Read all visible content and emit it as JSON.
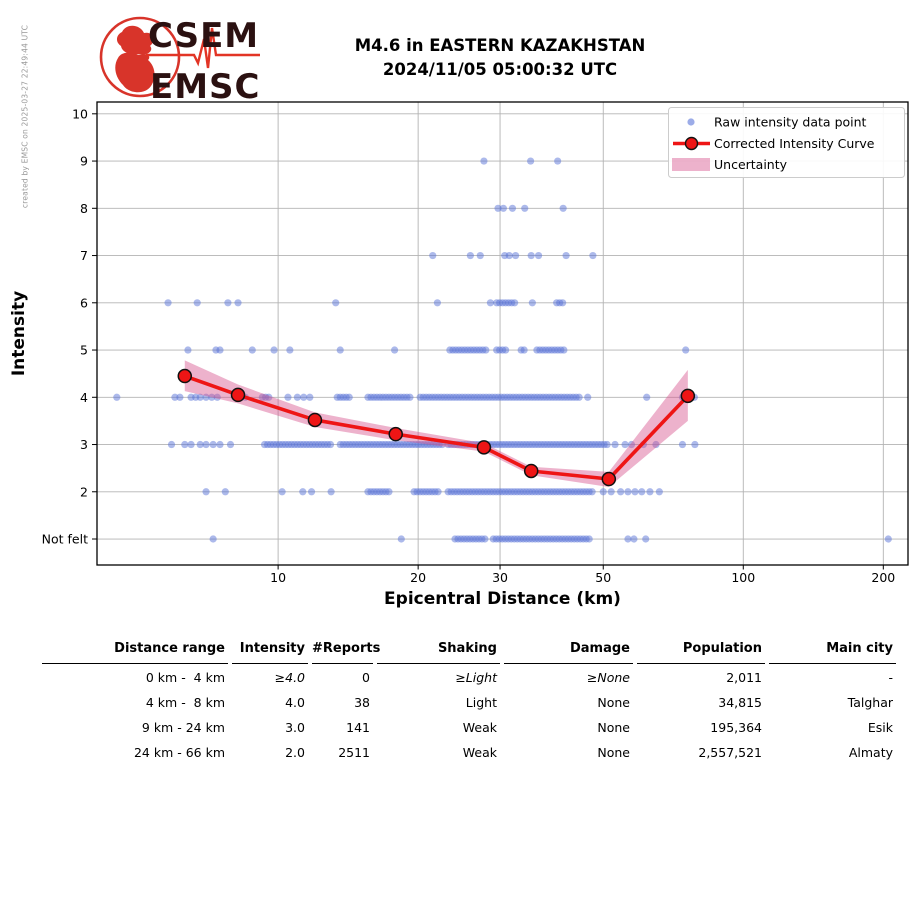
{
  "credit": "created by EMSC on 2025-03-27 22:49:44 UTC",
  "logo": {
    "line1": "CSEM",
    "line2": "EMSC"
  },
  "title": {
    "line1": "M4.6 in EASTERN KAZAKHSTAN",
    "line2": "2024/11/05 05:00:32 UTC"
  },
  "chart_data": {
    "type": "scatter",
    "title": "",
    "xlabel": "Epicentral Distance (km)",
    "ylabel": "Intensity",
    "x_scale": "log",
    "xlim": [
      4.08,
      226
    ],
    "ylim": [
      0.45,
      10.25
    ],
    "x_ticks": [
      10,
      20,
      30,
      50,
      100,
      200
    ],
    "y_ticks": [
      {
        "v": 10,
        "label": "10"
      },
      {
        "v": 9,
        "label": "9"
      },
      {
        "v": 8,
        "label": "8"
      },
      {
        "v": 7,
        "label": "7"
      },
      {
        "v": 6,
        "label": "6"
      },
      {
        "v": 5,
        "label": "5"
      },
      {
        "v": 4,
        "label": "4"
      },
      {
        "v": 3,
        "label": "3"
      },
      {
        "v": 2,
        "label": "2"
      },
      {
        "v": 1,
        "label": "Not felt"
      }
    ],
    "grid": true,
    "legend_position": "upper right",
    "legend": [
      {
        "type": "point",
        "label": "Raw intensity data point"
      },
      {
        "type": "line",
        "label": "Corrected Intensity Curve"
      },
      {
        "type": "patch",
        "label": "Uncertainty"
      }
    ],
    "colors": {
      "raw_point": "#5a74d8",
      "curve": "#ee1515",
      "marker_edge": "#111111",
      "band": "#d6548e",
      "grid": "#b3b3b3",
      "logo_red": "#d8342a",
      "logo_text": "#2b1111",
      "credit_gray": "#999999"
    },
    "raw_series": [
      {
        "intensity": 9,
        "points": [
          27.7,
          34.9,
          39.9
        ],
        "dense": []
      },
      {
        "intensity": 8,
        "points": [
          29.7,
          30.5,
          31.9,
          33.9,
          41.0
        ],
        "dense": []
      },
      {
        "intensity": 7,
        "points": [
          21.5,
          25.9,
          27.2,
          30.7,
          31.4,
          32.4,
          35.0,
          36.3,
          41.6,
          47.5
        ],
        "dense": []
      },
      {
        "intensity": 6,
        "points": [
          5.8,
          6.7,
          7.8,
          8.2,
          13.3,
          22.0,
          28.6,
          35.2
        ],
        "dense": [
          [
            29.5,
            32.7
          ],
          [
            39.7,
            41.2
          ]
        ]
      },
      {
        "intensity": 5,
        "points": [
          6.4,
          7.35,
          7.5,
          8.8,
          9.8,
          10.6,
          13.6,
          17.8,
          75.2
        ],
        "dense": [
          [
            23.4,
            28.3
          ],
          [
            29.5,
            31.3
          ],
          [
            33.3,
            34.2
          ],
          [
            36.0,
            41.7
          ]
        ]
      },
      {
        "intensity": 4,
        "points": [
          4.5,
          6.0,
          6.15,
          6.5,
          6.65,
          6.8,
          7.0,
          7.2,
          7.4,
          8.1,
          8.5,
          9.25,
          9.4,
          9.55,
          10.5,
          11.0,
          11.35,
          11.7,
          46.3,
          62.0,
          74.0,
          78.5
        ],
        "dense": [
          [
            13.4,
            14.4
          ],
          [
            15.6,
            19.4
          ],
          [
            20.2,
            44.4
          ]
        ]
      },
      {
        "intensity": 3,
        "points": [
          5.9,
          6.3,
          6.5,
          6.8,
          7.0,
          7.25,
          7.5,
          7.9,
          53.0,
          55.7,
          57.5,
          61.0,
          64.9,
          74.0,
          78.7
        ],
        "dense": [
          [
            9.35,
            13.0
          ],
          [
            13.6,
            22.6
          ],
          [
            23.2,
            51.5
          ]
        ]
      },
      {
        "intensity": 2,
        "points": [
          7.0,
          7.7,
          10.2,
          11.3,
          11.8,
          13.0,
          50.0,
          52.0,
          54.5,
          56.5,
          58.5,
          60.5,
          63.0,
          66.0
        ],
        "dense": [
          [
            15.6,
            17.5
          ],
          [
            19.6,
            22.3
          ],
          [
            23.2,
            48.0
          ]
        ]
      },
      {
        "intensity": 1,
        "points": [
          7.25,
          18.4,
          56.5,
          58.2,
          61.7,
          205.0
        ],
        "dense": [
          [
            24.0,
            28.1
          ],
          [
            29.0,
            47.0
          ]
        ]
      }
    ],
    "corrected_curve": {
      "x": [
        6.3,
        8.2,
        12.0,
        17.9,
        27.7,
        35.0,
        51.4,
        76.0
      ],
      "y": [
        4.45,
        4.05,
        3.52,
        3.22,
        2.94,
        2.44,
        2.27,
        4.03
      ],
      "upper": [
        4.78,
        4.27,
        3.68,
        3.35,
        3.03,
        2.53,
        2.42,
        4.58
      ],
      "lower": [
        4.13,
        3.87,
        3.37,
        3.09,
        2.85,
        2.35,
        2.1,
        3.5
      ]
    }
  },
  "table": {
    "headers": [
      "Distance range",
      "Intensity",
      "#Reports",
      "Shaking",
      "Damage",
      "Population",
      "Main city"
    ],
    "rows": [
      [
        " 0 km -  4 km",
        "≥4.0",
        "0",
        "≥Light",
        "≥None",
        "2,011",
        "-"
      ],
      [
        " 4 km -  8 km",
        "4.0",
        "38",
        "Light",
        "None",
        "34,815",
        "Talghar"
      ],
      [
        " 9 km - 24 km",
        "3.0",
        "141",
        "Weak",
        "None",
        "195,364",
        "Esik"
      ],
      [
        "24 km - 66 km",
        "2.0",
        "2511",
        "Weak",
        "None",
        "2,557,521",
        "Almaty"
      ]
    ]
  }
}
